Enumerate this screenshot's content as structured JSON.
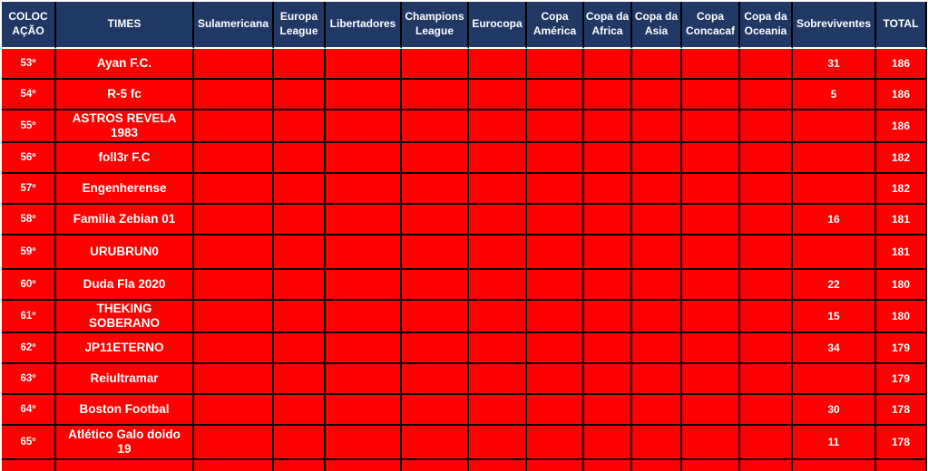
{
  "colors": {
    "header_bg": "#1F3864",
    "row_bg": "#FE0000",
    "text": "#FFFFFF",
    "grid": "#000000",
    "header_gap": "#FFFFFF",
    "page_bg": "#FFFFFF"
  },
  "table": {
    "headers": [
      "COLOCAÇÃO",
      "TIMES",
      "Sulamericana",
      "Europa League",
      "Libertadores",
      "Champions League",
      "Eurocopa",
      "Copa América",
      "Copa da Africa",
      "Copa da Asia",
      "Copa Concacaf",
      "Copa da Oceania",
      "Sobreviventes",
      "TOTAL"
    ],
    "rows": [
      {
        "pos": "53º",
        "team": "Ayan F.C.",
        "survivors": "31",
        "total": "186"
      },
      {
        "pos": "54º",
        "team": "R-5 fc",
        "survivors": "5",
        "total": "186"
      },
      {
        "pos": "55º",
        "team": "ASTROS REVELA 1983",
        "survivors": "",
        "total": "186"
      },
      {
        "pos": "56º",
        "team": "foll3r F.C",
        "survivors": "",
        "total": "182"
      },
      {
        "pos": "57º",
        "team": "Engenherense",
        "survivors": "",
        "total": "182"
      },
      {
        "pos": "58º",
        "team": "Familia Zebian 01",
        "survivors": "16",
        "total": "181"
      },
      {
        "pos": "59º",
        "team": "URUBRUN0",
        "survivors": "",
        "total": "181"
      },
      {
        "pos": "60º",
        "team": "Duda Fla 2020",
        "survivors": "22",
        "total": "180"
      },
      {
        "pos": "61º",
        "team": "THEKING SOBERANO",
        "survivors": "15",
        "total": "180"
      },
      {
        "pos": "62º",
        "team": "JP11ETERNO",
        "survivors": "34",
        "total": "179"
      },
      {
        "pos": "63º",
        "team": "Reiultramar",
        "survivors": "",
        "total": "179"
      },
      {
        "pos": "64º",
        "team": "Boston Footbal",
        "survivors": "30",
        "total": "178"
      },
      {
        "pos": "65º",
        "team": "Atlético Galo doido 19",
        "survivors": "11",
        "total": "178"
      }
    ]
  }
}
